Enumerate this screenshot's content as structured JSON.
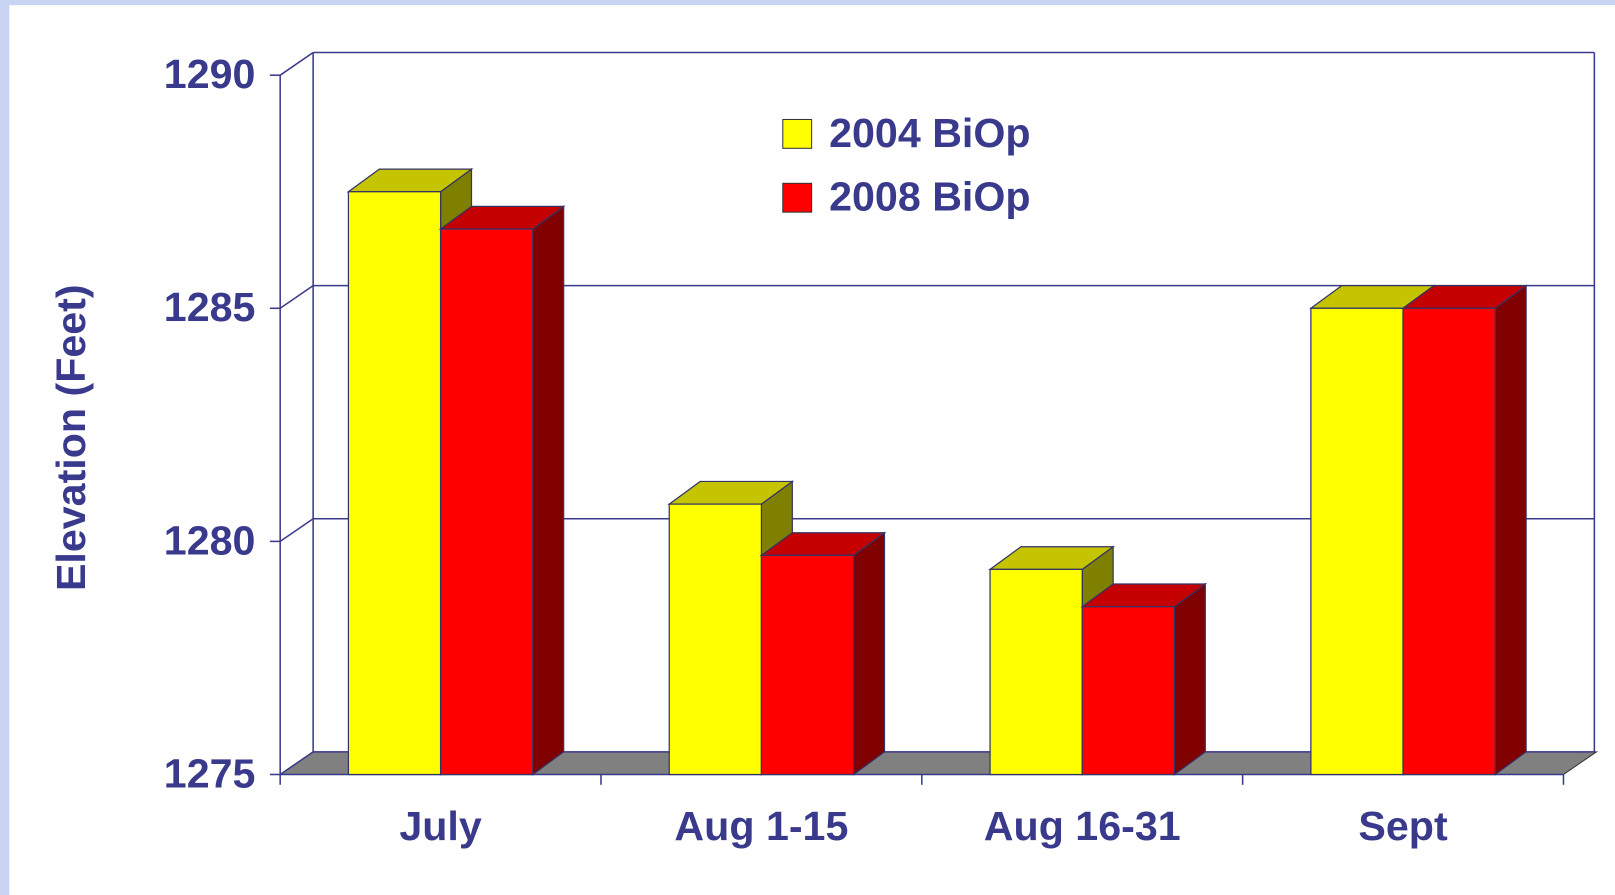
{
  "chart_data": {
    "type": "bar3d",
    "y_label": "Elevation (Feet)",
    "categories": [
      "July",
      "Aug 1-15",
      "Aug 16-31",
      "Sept"
    ],
    "series": [
      {
        "name": "2004 BiOp",
        "color": "#ffff00",
        "values": [
          1287.5,
          1280.8,
          1279.4,
          1285
        ]
      },
      {
        "name": "2008 BiOp",
        "color": "#ff0000",
        "values": [
          1286.7,
          1279.7,
          1278.6,
          1285
        ]
      }
    ],
    "ylim": [
      1275,
      1290
    ],
    "yticks": [
      1275,
      1280,
      1285,
      1290
    ],
    "grid": true
  }
}
